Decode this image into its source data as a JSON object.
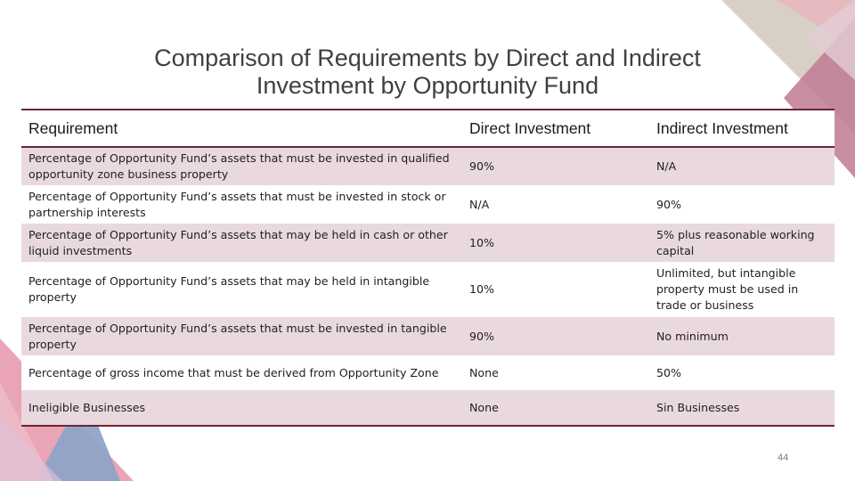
{
  "slide": {
    "title_line1": "Comparison of Requirements by Direct and Indirect",
    "title_line2": "Investment by Opportunity Fund",
    "page_number": "44"
  },
  "table": {
    "headers": [
      "Requirement",
      "Direct Investment",
      "Indirect Investment"
    ],
    "rows": [
      [
        "Percentage of Opportunity Fund’s assets that must be invested in qualified opportunity zone business property",
        "90%",
        "N/A"
      ],
      [
        "Percentage of Opportunity Fund’s assets that must be invested in stock or partnership interests",
        "N/A",
        "90%"
      ],
      [
        "Percentage of Opportunity Fund’s assets that may be held in cash or other liquid investments",
        "10%",
        "5% plus reasonable working capital"
      ],
      [
        "Percentage of Opportunity Fund’s assets that may be held in intangible property",
        "10%",
        "Unlimited, but intangible property must be used in trade or business"
      ],
      [
        "Percentage of Opportunity Fund’s assets that must be invested in tangible property",
        "90%",
        "No minimum"
      ],
      [
        "Percentage of gross income that must be derived from Opportunity Zone",
        "None",
        "50%"
      ],
      [
        "Ineligible Businesses",
        "None",
        "Sin Businesses"
      ]
    ]
  },
  "colors": {
    "row_shade": "#e9d9de",
    "rule": "#6b2434",
    "title_text": "#404040"
  }
}
